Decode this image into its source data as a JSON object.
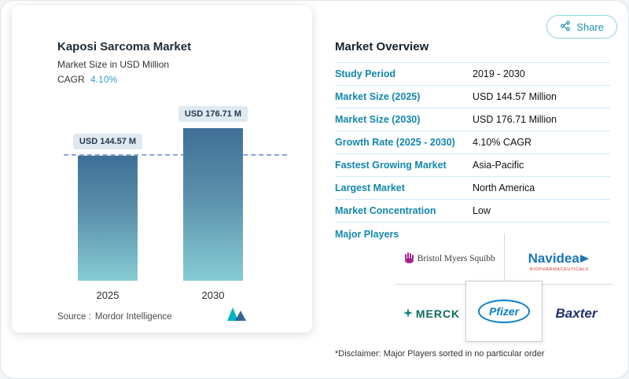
{
  "header": {
    "share_label": "Share"
  },
  "chart": {
    "title": "Kaposi Sarcoma Market",
    "subtitle": "Market Size in USD Million",
    "cagr_label": "CAGR",
    "cagr_value": "4.10%",
    "source_label": "Source :",
    "source_name": "Mordor Intelligence"
  },
  "chart_data": {
    "type": "bar",
    "title": "Kaposi Sarcoma Market",
    "ylabel": "Market Size in USD Million",
    "categories": [
      "2025",
      "2030"
    ],
    "values": [
      144.57,
      176.71
    ],
    "bar_labels": [
      "USD 144.57 M",
      "USD 176.71 M"
    ],
    "unit": "USD Million",
    "ylim": [
      0,
      200
    ],
    "grid": false,
    "reference_line": 144.57,
    "cagr": "4.10%"
  },
  "overview": {
    "title": "Market Overview",
    "rows": [
      {
        "label": "Study Period",
        "value": "2019 - 2030"
      },
      {
        "label": "Market Size (2025)",
        "value": "USD 144.57 Million"
      },
      {
        "label": "Market Size (2030)",
        "value": "USD 176.71 Million"
      },
      {
        "label": "Growth Rate (2025 - 2030)",
        "value": "4.10% CAGR"
      },
      {
        "label": "Fastest Growing Market",
        "value": "Asia-Pacific"
      },
      {
        "label": "Largest Market",
        "value": "North America"
      },
      {
        "label": "Market Concentration",
        "value": "Low"
      }
    ],
    "major_players_label": "Major Players",
    "disclaimer": "*Disclaimer: Major Players sorted in no particular order"
  },
  "players": {
    "bristol": "Bristol Myers Squibb",
    "navidea": "Navidea",
    "navidea_sub": "BIOPHARMACEUTICALS",
    "merck": "MERCK",
    "pfizer": "Pfizer",
    "baxter": "Baxter"
  },
  "colors": {
    "accent": "#1287ae",
    "cagr_blue": "#39a0d0",
    "bar_top": "#3f6f97",
    "bar_bottom": "#86ccd4",
    "row_border": "#cfe9f5"
  }
}
